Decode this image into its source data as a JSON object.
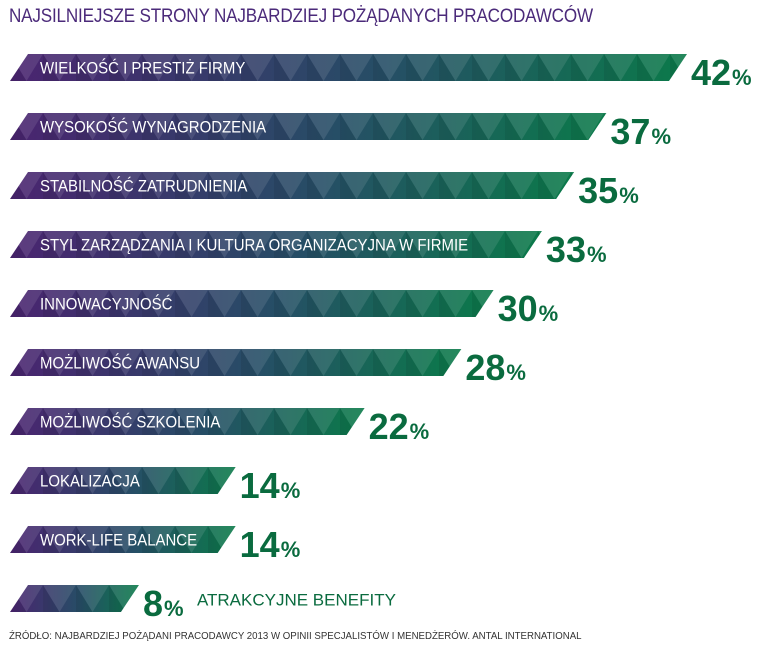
{
  "title": "NAJSILNIEJSZE STRONY NAJBARDZIEJ POŻĄDANYCH PRACODAWCÓW",
  "source": "ŹRÓDŁO: NAJBARDZIEJ POŻĄDANI PRACODAWCY 2013 W OPINII SPECJALISTÓW I MENEDŻERÓW. ANTAL INTERNATIONAL",
  "colors": {
    "purple": "#4a2470",
    "green": "#0b7a4a",
    "value_text": "#0a6b3f",
    "title": "#4b2a7a"
  },
  "chart_data": {
    "type": "bar",
    "orientation": "horizontal",
    "title": "NAJSILNIEJSZE STRONY NAJBARDZIEJ POŻĄDANYCH PRACODAWCÓW",
    "xlabel": "",
    "ylabel": "",
    "unit": "%",
    "xlim": [
      0,
      42
    ],
    "categories": [
      "WIELKOŚĆ I PRESTIŻ FIRMY",
      "WYSOKOŚĆ WYNAGRODZENIA",
      "STABILNOŚĆ ZATRUDNIENIA",
      "STYL ZARZĄDZANIA I KULTURA ORGANIZACYJNA W FIRMIE",
      "INNOWACYJNOŚĆ",
      "MOŻLIWOŚĆ AWANSU",
      "MOŻLIWOŚĆ SZKOLENIA",
      "LOKALIZACJA",
      "WORK-LIFE BALANCE",
      "ATRAKCYJNE BENEFITY"
    ],
    "values": [
      42,
      37,
      35,
      33,
      30,
      28,
      22,
      14,
      14,
      8
    ],
    "value_labels": [
      "42",
      "37",
      "35",
      "33",
      "30",
      "28",
      "22",
      "14",
      "14",
      "8"
    ],
    "percent_sign": "%"
  }
}
